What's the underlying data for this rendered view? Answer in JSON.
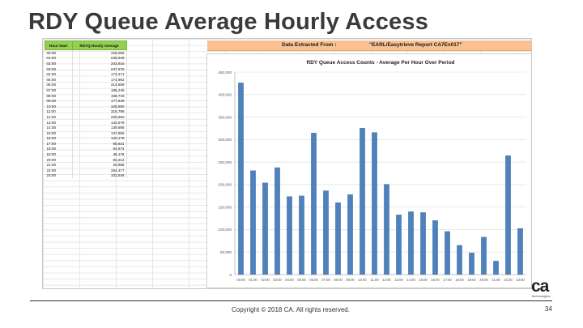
{
  "slide": {
    "title": "RDY Queue Average Hourly Access",
    "copyright": "Copyright © 2018 CA. All rights reserved.",
    "page_number": "34",
    "logo_text": "ca",
    "logo_subtext": "technologies"
  },
  "sheet": {
    "headers": [
      "Hour Start",
      "RDYQ Hourly Average"
    ],
    "rows": [
      [
        "00:00",
        "426,095"
      ],
      [
        "01:00",
        "230,949"
      ],
      [
        "02:00",
        "203,916"
      ],
      [
        "03:00",
        "237,675"
      ],
      [
        "04:00",
        "173,471"
      ],
      [
        "05:00",
        "174,982"
      ],
      [
        "06:00",
        "314,669"
      ],
      [
        "07:00",
        "186,245"
      ],
      [
        "08:00",
        "159,718"
      ],
      [
        "09:00",
        "177,648"
      ],
      [
        "10:00",
        "325,590"
      ],
      [
        "11:00",
        "315,798"
      ],
      [
        "12:00",
        "200,650"
      ],
      [
        "13:00",
        "132,679"
      ],
      [
        "14:00",
        "139,695"
      ],
      [
        "15:00",
        "137,855"
      ],
      [
        "16:00",
        "120,178"
      ],
      [
        "17:00",
        "95,821"
      ],
      [
        "18:00",
        "64,874"
      ],
      [
        "19:00",
        "48,178"
      ],
      [
        "20:00",
        "83,314"
      ],
      [
        "21:00",
        "29,968"
      ],
      [
        "22:00",
        "264,477"
      ],
      [
        "23:00",
        "102,546"
      ]
    ],
    "banner_label": "Data Extracted From  :",
    "banner_source": "\"EARL/Easytrieve Report CA7Ex017\""
  },
  "chart_data": {
    "type": "bar",
    "title": "RDY Queue Access Counts - Average Per Hour Over Period",
    "xlabel": "",
    "ylabel": "",
    "categories": [
      "00:00",
      "01:00",
      "02:00",
      "03:00",
      "04:00",
      "05:00",
      "06:00",
      "07:00",
      "08:00",
      "09:00",
      "10:00",
      "11:00",
      "12:00",
      "13:00",
      "14:00",
      "15:00",
      "16:00",
      "17:00",
      "18:00",
      "19:00",
      "20:00",
      "21:00",
      "22:00",
      "23:00"
    ],
    "values": [
      426095,
      230949,
      203916,
      237675,
      173471,
      174982,
      314669,
      186245,
      159718,
      177648,
      325590,
      315798,
      200650,
      132679,
      139695,
      137855,
      120178,
      95821,
      64874,
      48178,
      83314,
      29968,
      264477,
      102546
    ],
    "ylim": [
      0,
      450000
    ],
    "yticks": [
      0,
      50000,
      100000,
      150000,
      200000,
      250000,
      300000,
      350000,
      400000,
      450000
    ],
    "ytick_labels": [
      "0",
      "50,000",
      "100,000",
      "150,000",
      "200,000",
      "250,000",
      "300,000",
      "350,000",
      "400,000",
      "450,000"
    ],
    "grid": true,
    "legend": "none",
    "bar_color": "#4f81bd"
  }
}
